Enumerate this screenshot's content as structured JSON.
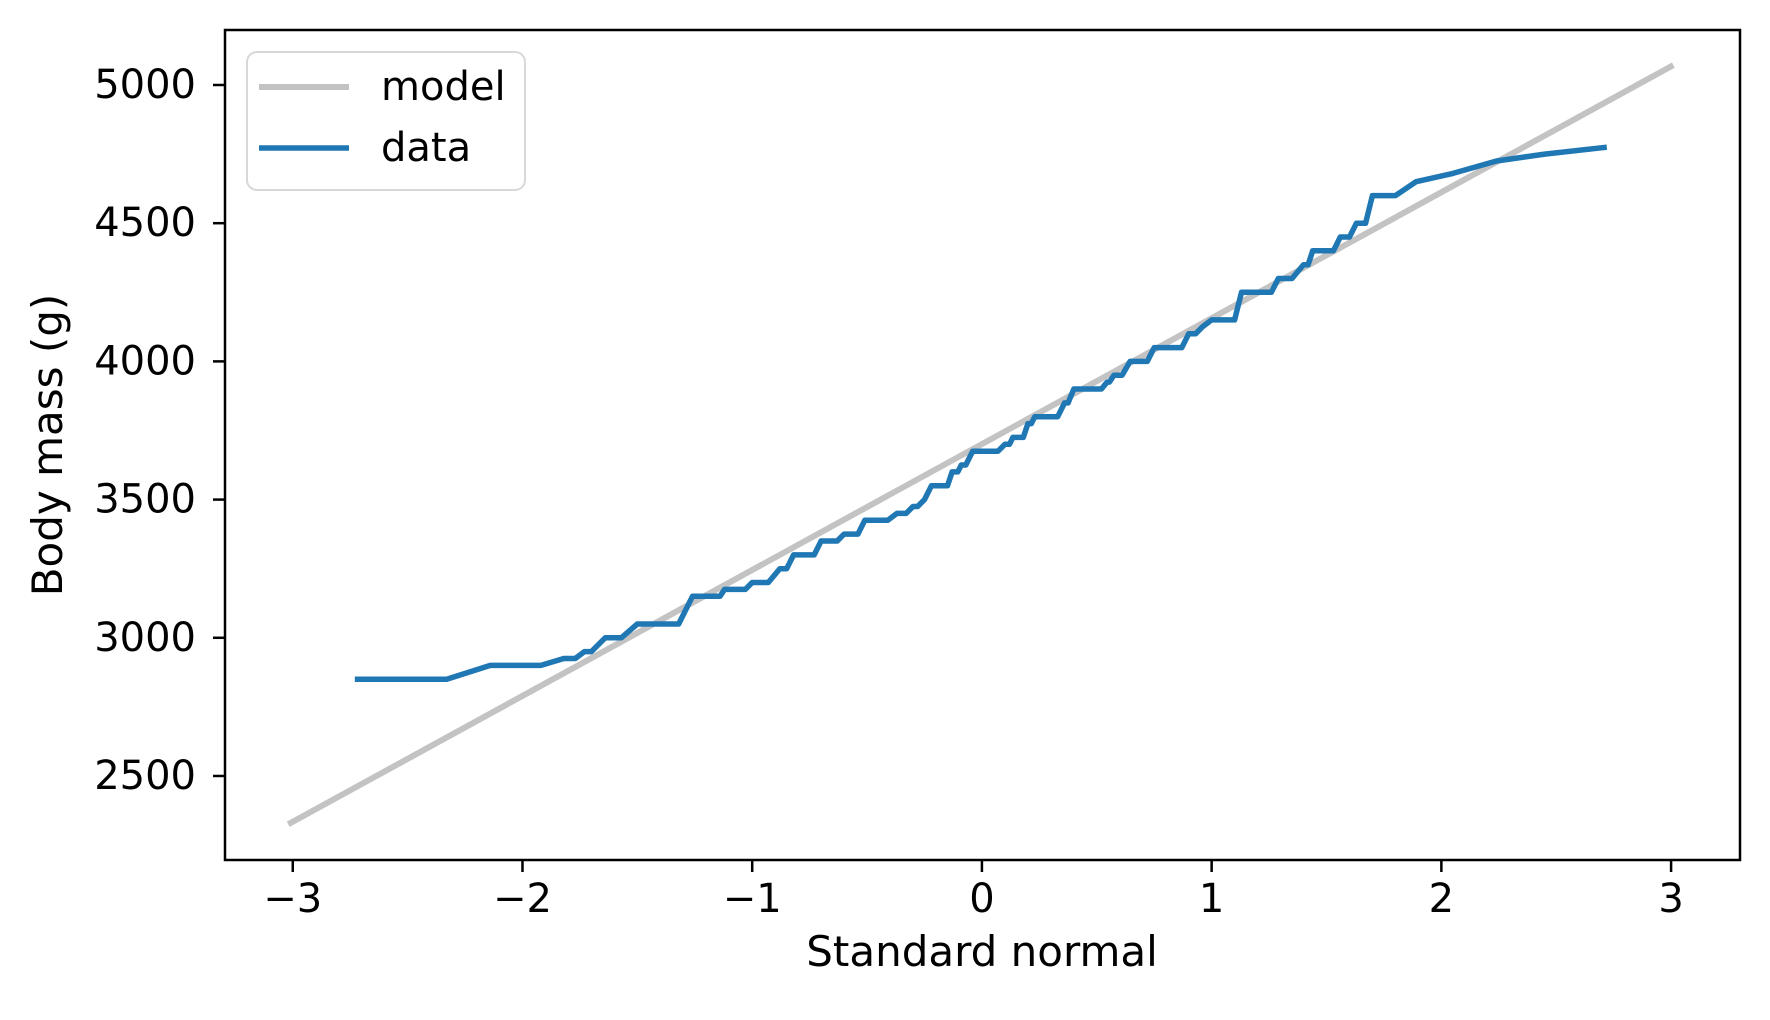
{
  "chart_data": {
    "type": "line",
    "title": "",
    "xlabel": "Standard normal",
    "ylabel": "Body mass (g)",
    "xlim": [
      -3.295,
      3.3
    ],
    "ylim": [
      2196,
      5199
    ],
    "xticks": [
      -3,
      -2,
      -1,
      0,
      1,
      2,
      3
    ],
    "xtick_labels": [
      "−3",
      "−2",
      "−1",
      "0",
      "1",
      "2",
      "3"
    ],
    "yticks": [
      2500,
      3000,
      3500,
      4000,
      4500,
      5000
    ],
    "ytick_labels": [
      "2500",
      "3000",
      "3500",
      "4000",
      "4500",
      "5000"
    ],
    "grid": false,
    "legend": {
      "position": "upper left",
      "entries": [
        {
          "label": "model",
          "color": "#c3c3c3"
        },
        {
          "label": "data",
          "color": "#1f77b4"
        }
      ]
    },
    "series": [
      {
        "name": "model",
        "color": "#c3c3c3",
        "linewidth": 6,
        "x": [
          -3.02,
          3.01
        ],
        "y": [
          2325,
          5072
        ]
      },
      {
        "name": "data",
        "color": "#1f77b4",
        "linewidth": 5.5,
        "x": [
          -2.73,
          -2.33,
          -2.14,
          -1.92,
          -1.82,
          -1.77,
          -1.73,
          -1.7,
          -1.67,
          -1.64,
          -1.57,
          -1.5,
          -1.32,
          -1.26,
          -1.14,
          -1.12,
          -1.03,
          -1.0,
          -0.93,
          -0.88,
          -0.85,
          -0.82,
          -0.73,
          -0.7,
          -0.63,
          -0.6,
          -0.54,
          -0.51,
          -0.41,
          -0.37,
          -0.33,
          -0.3,
          -0.28,
          -0.25,
          -0.22,
          -0.15,
          -0.13,
          -0.105,
          -0.09,
          -0.07,
          -0.04,
          0.07,
          0.1,
          0.12,
          0.135,
          0.18,
          0.2,
          0.215,
          0.23,
          0.33,
          0.36,
          0.375,
          0.4,
          0.52,
          0.545,
          0.555,
          0.575,
          0.61,
          0.645,
          0.72,
          0.75,
          0.87,
          0.9,
          0.93,
          0.96,
          1.0,
          1.1,
          1.13,
          1.26,
          1.29,
          1.35,
          1.4,
          1.42,
          1.44,
          1.53,
          1.56,
          1.6,
          1.63,
          1.67,
          1.7,
          1.8,
          1.89,
          2.05,
          2.24,
          2.45,
          2.72
        ],
        "y": [
          2850,
          2850,
          2900,
          2900,
          2925,
          2925,
          2950,
          2950,
          2975,
          3000,
          3000,
          3050,
          3050,
          3150,
          3150,
          3175,
          3175,
          3200,
          3200,
          3250,
          3250,
          3300,
          3300,
          3350,
          3350,
          3375,
          3375,
          3425,
          3425,
          3450,
          3450,
          3475,
          3475,
          3500,
          3550,
          3550,
          3600,
          3600,
          3625,
          3625,
          3675,
          3675,
          3700,
          3700,
          3725,
          3725,
          3775,
          3775,
          3800,
          3800,
          3850,
          3850,
          3900,
          3900,
          3925,
          3925,
          3950,
          3950,
          4000,
          4000,
          4050,
          4050,
          4100,
          4100,
          4125,
          4150,
          4150,
          4250,
          4250,
          4300,
          4300,
          4350,
          4350,
          4400,
          4400,
          4450,
          4450,
          4500,
          4500,
          4600,
          4600,
          4650,
          4680,
          4725,
          4750,
          4775
        ]
      }
    ]
  },
  "colors": {
    "background": "#ffffff",
    "frame": "#000000",
    "model_line": "#c3c3c3",
    "data_line": "#1f77b4",
    "legend_border": "#d8d8d8"
  }
}
